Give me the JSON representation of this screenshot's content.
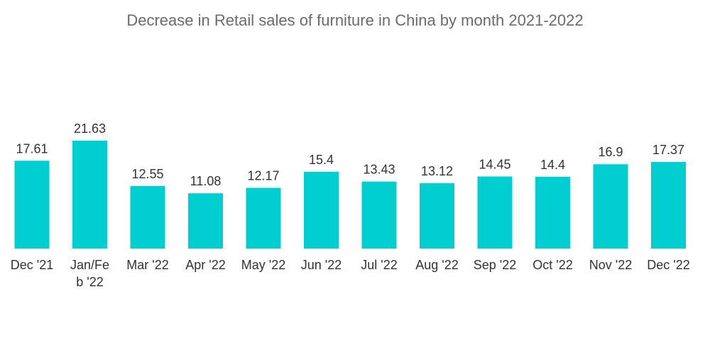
{
  "chart_data": {
    "type": "bar",
    "title": "Decrease in Retail sales of furniture in China by month 2021-2022",
    "xlabel": "",
    "ylabel": "",
    "categories": [
      "Dec '21",
      "Jan/Feb '22",
      "Mar '22",
      "Apr '22",
      "May '22",
      "Jun '22",
      "Jul '22",
      "Aug '22",
      "Sep '22",
      "Oct '22",
      "Nov '22",
      "Dec '22"
    ],
    "category_lines": [
      [
        "Dec '21"
      ],
      [
        "Jan/Fe",
        "b '22"
      ],
      [
        "Mar '22"
      ],
      [
        "Apr '22"
      ],
      [
        "May '22"
      ],
      [
        "Jun '22"
      ],
      [
        "Jul '22"
      ],
      [
        "Aug '22"
      ],
      [
        "Sep '22"
      ],
      [
        "Oct '22"
      ],
      [
        "Nov '22"
      ],
      [
        "Dec '22"
      ]
    ],
    "values": [
      17.61,
      21.63,
      12.55,
      11.08,
      12.17,
      15.4,
      13.43,
      13.12,
      14.45,
      14.4,
      16.9,
      17.37
    ],
    "value_labels": [
      "17.61",
      "21.63",
      "12.55",
      "11.08",
      "12.17",
      "15.4",
      "13.43",
      "13.12",
      "14.45",
      "14.4",
      "16.9",
      "17.37"
    ],
    "ylim": [
      0,
      21.63
    ],
    "grid": false,
    "legend": "none",
    "bar_color": "#00ced1"
  }
}
